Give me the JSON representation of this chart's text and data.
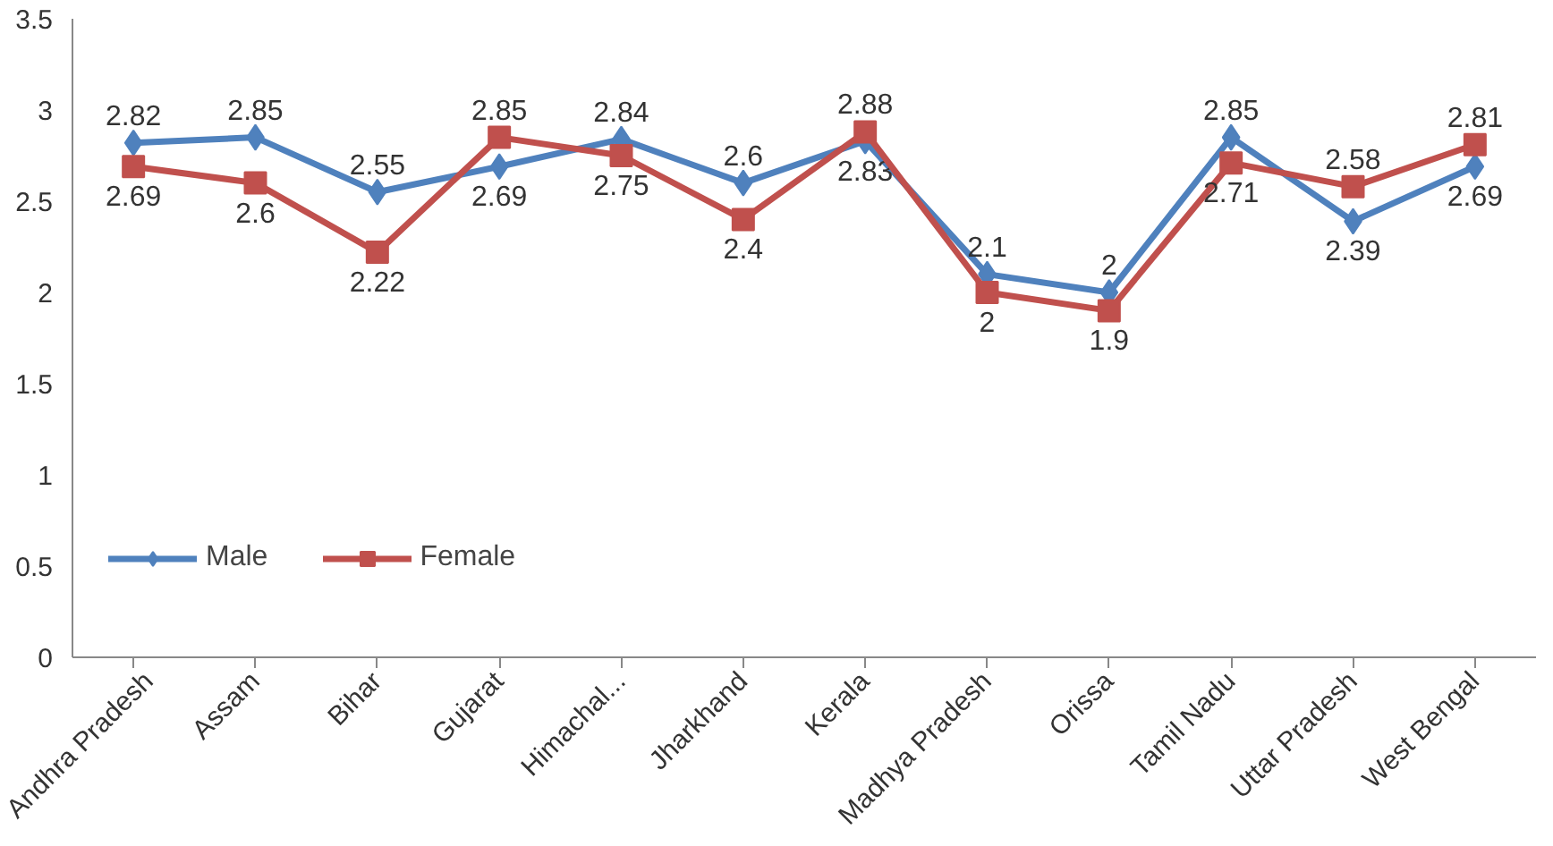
{
  "chart_data": {
    "type": "line",
    "categories": [
      "Andhra Pradesh",
      "Assam",
      "Bihar",
      "Gujarat",
      "Himachal...",
      "Jharkhand",
      "Kerala",
      "Madhya Pradesh",
      "Orissa",
      "Tamil Nadu",
      "Uttar Pradesh",
      "West Bengal"
    ],
    "series": [
      {
        "name": "Male",
        "color": "#4f81bd",
        "marker": "diamond",
        "values": [
          2.82,
          2.85,
          2.55,
          2.69,
          2.84,
          2.6,
          2.83,
          2.1,
          2,
          2.85,
          2.39,
          2.69
        ]
      },
      {
        "name": "Female",
        "color": "#c0504d",
        "marker": "square",
        "values": [
          2.69,
          2.6,
          2.22,
          2.85,
          2.75,
          2.4,
          2.88,
          2,
          1.9,
          2.71,
          2.58,
          2.81
        ]
      }
    ],
    "ylim": [
      0,
      3.5
    ],
    "yticks": [
      0,
      0.5,
      1,
      1.5,
      2,
      2.5,
      3,
      3.5
    ],
    "grid": false,
    "legend": "left",
    "data_labels": true
  }
}
